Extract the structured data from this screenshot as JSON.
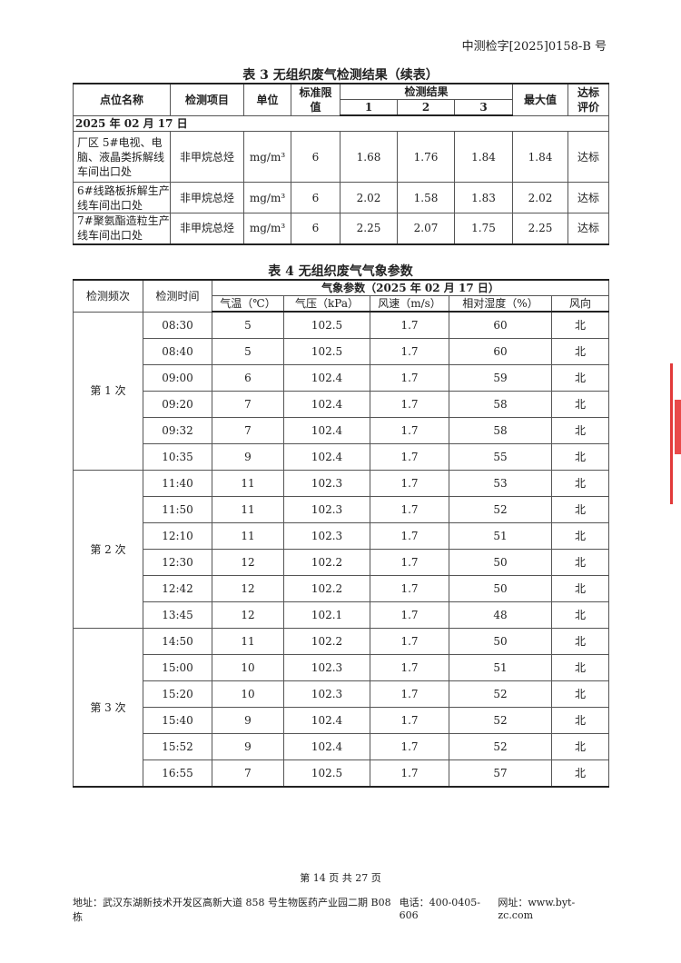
{
  "header": {
    "doc_number": "中测检字[2025]0158-B 号"
  },
  "table3": {
    "caption": "表 3   无组织废气检测结果（续表）",
    "headers": {
      "location": "点位名称",
      "item": "检测项目",
      "unit": "单位",
      "limit": "标准限值",
      "results": "检测结果",
      "r1": "1",
      "r2": "2",
      "r3": "3",
      "max": "最大值",
      "eval": "达标评价"
    },
    "date": "2025 年 02 月 17 日",
    "rows": [
      {
        "location": "厂区 5#电视、电脑、液晶类拆解线车间出口处",
        "item": "非甲烷总烃",
        "unit": "mg/m³",
        "limit": "6",
        "r1": "1.68",
        "r2": "1.76",
        "r3": "1.84",
        "max": "1.84",
        "eval": "达标"
      },
      {
        "location": "6#线路板拆解生产线车间出口处",
        "item": "非甲烷总烃",
        "unit": "mg/m³",
        "limit": "6",
        "r1": "2.02",
        "r2": "1.58",
        "r3": "1.83",
        "max": "2.02",
        "eval": "达标"
      },
      {
        "location": "7#聚氨酯造粒生产线车间出口处",
        "item": "非甲烷总烃",
        "unit": "mg/m³",
        "limit": "6",
        "r1": "2.25",
        "r2": "2.07",
        "r3": "1.75",
        "max": "2.25",
        "eval": "达标"
      }
    ]
  },
  "table4": {
    "caption": "表 4   无组织废气气象参数",
    "headers": {
      "freq": "检测频次",
      "time": "检测时间",
      "group": "气象参数（2025 年 02 月 17 日）",
      "temp": "气温（℃）",
      "pressure": "气压（kPa）",
      "wind_speed": "风速（m/s）",
      "humidity": "相对湿度（%）",
      "wind_dir": "风向"
    },
    "groups": [
      {
        "label": "第 1 次",
        "rows": [
          [
            "08:30",
            "5",
            "102.5",
            "1.7",
            "60",
            "北"
          ],
          [
            "08:40",
            "5",
            "102.5",
            "1.7",
            "60",
            "北"
          ],
          [
            "09:00",
            "6",
            "102.4",
            "1.7",
            "59",
            "北"
          ],
          [
            "09:20",
            "7",
            "102.4",
            "1.7",
            "58",
            "北"
          ],
          [
            "09:32",
            "7",
            "102.4",
            "1.7",
            "58",
            "北"
          ],
          [
            "10:35",
            "9",
            "102.4",
            "1.7",
            "55",
            "北"
          ]
        ]
      },
      {
        "label": "第 2 次",
        "rows": [
          [
            "11:40",
            "11",
            "102.3",
            "1.7",
            "53",
            "北"
          ],
          [
            "11:50",
            "11",
            "102.3",
            "1.7",
            "52",
            "北"
          ],
          [
            "12:10",
            "11",
            "102.3",
            "1.7",
            "51",
            "北"
          ],
          [
            "12:30",
            "12",
            "102.2",
            "1.7",
            "50",
            "北"
          ],
          [
            "12:42",
            "12",
            "102.2",
            "1.7",
            "50",
            "北"
          ],
          [
            "13:45",
            "12",
            "102.1",
            "1.7",
            "48",
            "北"
          ]
        ]
      },
      {
        "label": "第 3 次",
        "rows": [
          [
            "14:50",
            "11",
            "102.2",
            "1.7",
            "50",
            "北"
          ],
          [
            "15:00",
            "10",
            "102.3",
            "1.7",
            "51",
            "北"
          ],
          [
            "15:20",
            "10",
            "102.3",
            "1.7",
            "52",
            "北"
          ],
          [
            "15:40",
            "9",
            "102.4",
            "1.7",
            "52",
            "北"
          ],
          [
            "15:52",
            "9",
            "102.4",
            "1.7",
            "52",
            "北"
          ],
          [
            "16:55",
            "7",
            "102.5",
            "1.7",
            "57",
            "北"
          ]
        ]
      }
    ]
  },
  "footer": {
    "page": "第 14 页 共 27 页",
    "address": "地址：武汉东湖新技术开发区高新大道 858 号生物医药产业园二期 B08 栋",
    "phone": "电话：400-0405-606",
    "website": "网址：www.byt-zc.com"
  },
  "colors": {
    "stamp": "#e23a3a"
  }
}
